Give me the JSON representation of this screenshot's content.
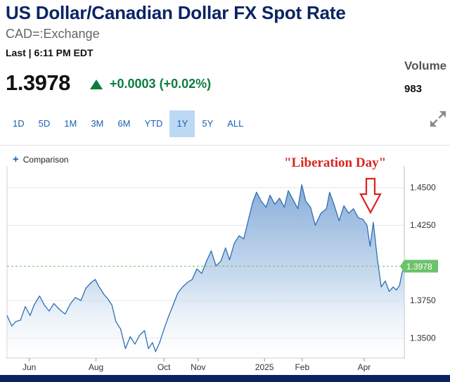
{
  "header": {
    "title": "US Dollar/Canadian Dollar FX Spot Rate",
    "symbol": "CAD=:Exchange",
    "last_time": "Last | 6:11 PM EDT",
    "price": "1.3978",
    "change": "+0.0003 (+0.02%)",
    "volume_label": "Volume",
    "volume_value": "983"
  },
  "ranges": [
    {
      "label": "1D",
      "active": false
    },
    {
      "label": "5D",
      "active": false
    },
    {
      "label": "1M",
      "active": false
    },
    {
      "label": "3M",
      "active": false
    },
    {
      "label": "6M",
      "active": false
    },
    {
      "label": "YTD",
      "active": false
    },
    {
      "label": "1Y",
      "active": true
    },
    {
      "label": "5Y",
      "active": false
    },
    {
      "label": "ALL",
      "active": false
    }
  ],
  "comparison_label": "Comparison",
  "icons": {
    "expand": "expand-arrows-icon",
    "comparison": "plus-icon",
    "up": "up-triangle-icon"
  },
  "colors": {
    "title": "#0a2463",
    "positive": "#0a7d3e",
    "line": "#2f6fb4",
    "annotation": "#d9251d",
    "last_badge": "#6cc36a"
  },
  "chart_data": {
    "type": "area",
    "title": "",
    "xlabel": "",
    "ylabel": "",
    "ylim": [
      1.3372,
      1.4597
    ],
    "yticks": [
      "1.4500",
      "1.4250",
      "1.3750",
      "1.3500"
    ],
    "yticks_values": [
      1.45,
      1.425,
      1.375,
      1.35
    ],
    "xticks": [
      "Jun",
      "Aug",
      "Oct",
      "Nov",
      "2025",
      "Feb",
      "Apr"
    ],
    "xticks_pos": [
      0.056,
      0.224,
      0.395,
      0.481,
      0.648,
      0.743,
      0.899
    ],
    "last_value_label": "1.3978",
    "last_value": 1.3978,
    "annotation": "\"Liberation Day\"",
    "annotation_x": 0.915,
    "series": [
      {
        "values": [
          [
            0.0,
            1.365
          ],
          [
            0.012,
            1.358
          ],
          [
            0.022,
            1.361
          ],
          [
            0.034,
            1.362
          ],
          [
            0.046,
            1.371
          ],
          [
            0.058,
            1.365
          ],
          [
            0.068,
            1.372
          ],
          [
            0.082,
            1.378
          ],
          [
            0.094,
            1.372
          ],
          [
            0.106,
            1.368
          ],
          [
            0.118,
            1.373
          ],
          [
            0.132,
            1.369
          ],
          [
            0.146,
            1.366
          ],
          [
            0.16,
            1.373
          ],
          [
            0.172,
            1.377
          ],
          [
            0.186,
            1.375
          ],
          [
            0.198,
            1.383
          ],
          [
            0.212,
            1.387
          ],
          [
            0.222,
            1.389
          ],
          [
            0.232,
            1.384
          ],
          [
            0.244,
            1.379
          ],
          [
            0.254,
            1.376
          ],
          [
            0.264,
            1.372
          ],
          [
            0.274,
            1.361
          ],
          [
            0.286,
            1.356
          ],
          [
            0.298,
            1.343
          ],
          [
            0.31,
            1.351
          ],
          [
            0.322,
            1.346
          ],
          [
            0.334,
            1.352
          ],
          [
            0.346,
            1.355
          ],
          [
            0.356,
            1.343
          ],
          [
            0.366,
            1.347
          ],
          [
            0.374,
            1.341
          ],
          [
            0.384,
            1.347
          ],
          [
            0.394,
            1.355
          ],
          [
            0.406,
            1.364
          ],
          [
            0.418,
            1.372
          ],
          [
            0.43,
            1.38
          ],
          [
            0.442,
            1.384
          ],
          [
            0.454,
            1.387
          ],
          [
            0.466,
            1.389
          ],
          [
            0.478,
            1.396
          ],
          [
            0.49,
            1.393
          ],
          [
            0.502,
            1.401
          ],
          [
            0.514,
            1.408
          ],
          [
            0.526,
            1.398
          ],
          [
            0.538,
            1.401
          ],
          [
            0.55,
            1.41
          ],
          [
            0.56,
            1.402
          ],
          [
            0.572,
            1.413
          ],
          [
            0.584,
            1.418
          ],
          [
            0.596,
            1.416
          ],
          [
            0.606,
            1.427
          ],
          [
            0.618,
            1.44
          ],
          [
            0.628,
            1.447
          ],
          [
            0.64,
            1.441
          ],
          [
            0.652,
            1.437
          ],
          [
            0.662,
            1.445
          ],
          [
            0.674,
            1.439
          ],
          [
            0.686,
            1.443
          ],
          [
            0.698,
            1.437
          ],
          [
            0.708,
            1.448
          ],
          [
            0.72,
            1.442
          ],
          [
            0.732,
            1.436
          ],
          [
            0.742,
            1.452
          ],
          [
            0.752,
            1.441
          ],
          [
            0.764,
            1.437
          ],
          [
            0.776,
            1.425
          ],
          [
            0.79,
            1.433
          ],
          [
            0.804,
            1.436
          ],
          [
            0.812,
            1.447
          ],
          [
            0.824,
            1.438
          ],
          [
            0.836,
            1.428
          ],
          [
            0.848,
            1.438
          ],
          [
            0.86,
            1.433
          ],
          [
            0.872,
            1.436
          ],
          [
            0.884,
            1.43
          ],
          [
            0.896,
            1.429
          ],
          [
            0.906,
            1.425
          ],
          [
            0.914,
            1.411
          ],
          [
            0.922,
            1.427
          ],
          [
            0.932,
            1.403
          ],
          [
            0.942,
            1.384
          ],
          [
            0.952,
            1.388
          ],
          [
            0.962,
            1.381
          ],
          [
            0.972,
            1.384
          ],
          [
            0.98,
            1.382
          ],
          [
            0.988,
            1.385
          ],
          [
            0.994,
            1.393
          ],
          [
            1.0,
            1.3978
          ]
        ]
      }
    ]
  }
}
